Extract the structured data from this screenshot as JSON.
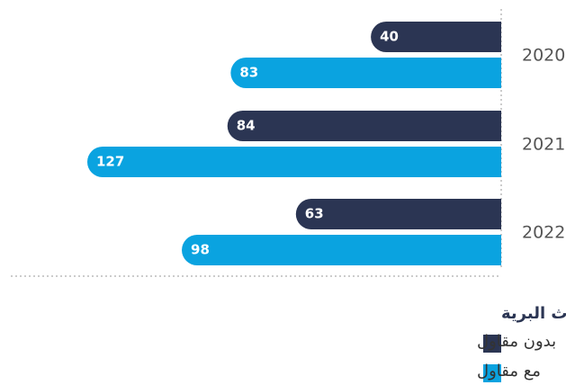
{
  "chart_data": {
    "type": "bar",
    "orientation": "horizontal",
    "categories": [
      "2020",
      "2021",
      "2022"
    ],
    "series": [
      {
        "name": "بدون مقاول",
        "color": "#2b3553",
        "values": [
          40,
          84,
          63
        ]
      },
      {
        "name": "مع مقاول",
        "color": "#0aa3e0",
        "values": [
          83,
          127,
          98
        ]
      }
    ],
    "legend_title": "الحوادث البرية"
  }
}
